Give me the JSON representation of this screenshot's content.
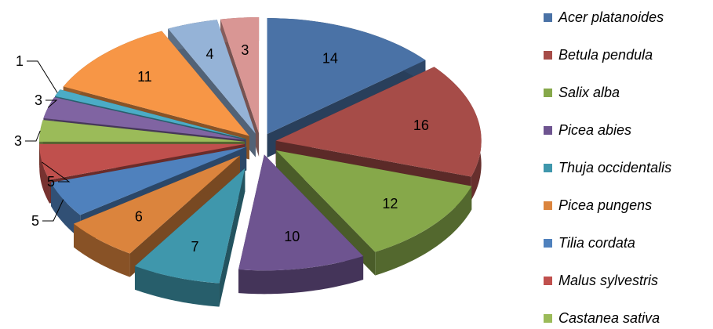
{
  "chart_data": {
    "type": "pie",
    "style": "3d-exploded",
    "legend_position": "right",
    "series": [
      {
        "label": "Acer platanoides",
        "value": 14,
        "color": "#4A72A6"
      },
      {
        "label": "Betula pendula",
        "value": 16,
        "color": "#A64C48"
      },
      {
        "label": "Salix alba",
        "value": 12,
        "color": "#86A84A"
      },
      {
        "label": "Picea abies",
        "value": 10,
        "color": "#6E5490"
      },
      {
        "label": "Thuja occidentalis",
        "value": 7,
        "color": "#3F97AC"
      },
      {
        "label": "Picea pungens",
        "value": 6,
        "color": "#DB843D"
      },
      {
        "label": "Tilia cordata",
        "value": 5,
        "color": "#4F81BD"
      },
      {
        "label": "Malus sylvestris",
        "value": 5,
        "color": "#C0504D"
      },
      {
        "label": "Castanea sativa",
        "value": 3,
        "color": "#9BBB59"
      },
      {
        "label": "",
        "value": 3,
        "color": "#8064A2"
      },
      {
        "label": "",
        "value": 1,
        "color": "#4BACC6"
      },
      {
        "label": "",
        "value": 11,
        "color": "#F79646"
      },
      {
        "label": "",
        "value": 4,
        "color": "#95B3D7"
      },
      {
        "label": "",
        "value": 3,
        "color": "#D99694"
      }
    ]
  }
}
